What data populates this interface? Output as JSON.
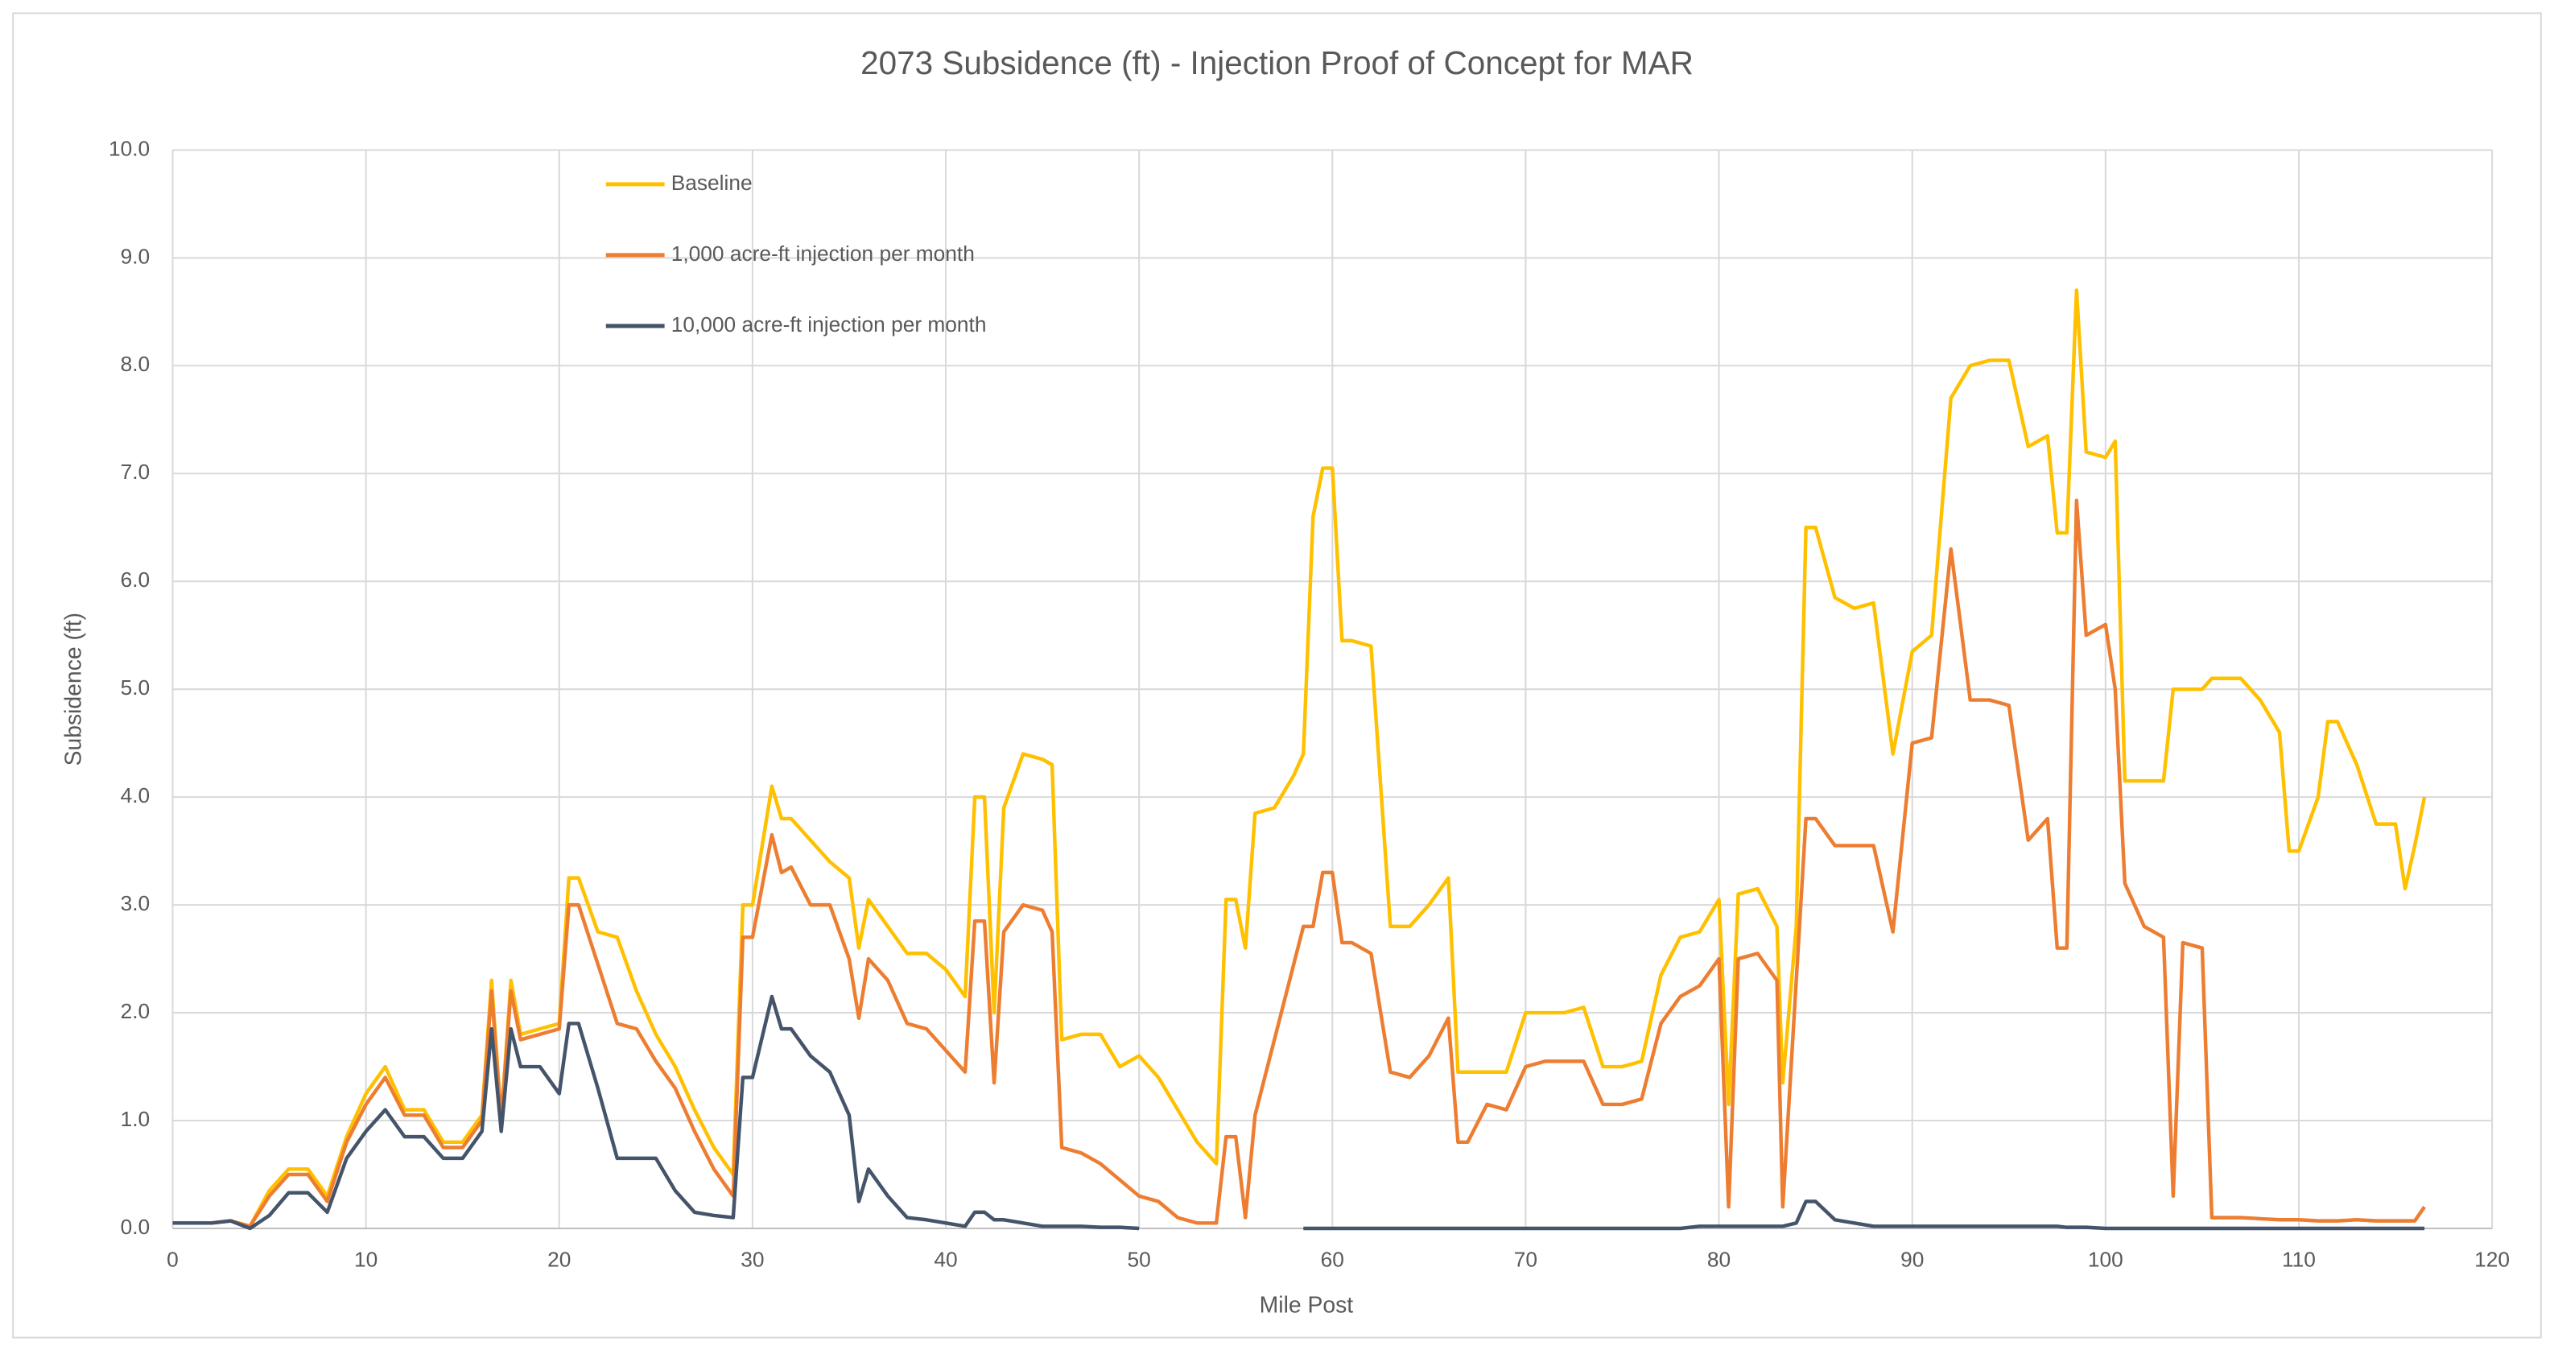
{
  "chart_data": {
    "type": "line",
    "title": "2073 Subsidence (ft) - Injection Proof of Concept for MAR",
    "x_label": "Mile Post",
    "y_label": "Subsidence (ft)",
    "grid": true,
    "legend": "top-left",
    "xlim": [
      0,
      120
    ],
    "xticks": [
      0,
      10,
      20,
      30,
      40,
      50,
      60,
      70,
      80,
      90,
      100,
      110,
      120
    ],
    "ylim": [
      0,
      10
    ],
    "yticks": [
      {
        "value": 0,
        "label": "0.0"
      },
      {
        "value": 1,
        "label": "1.0"
      },
      {
        "value": 2,
        "label": "2.0"
      },
      {
        "value": 3,
        "label": "3.0"
      },
      {
        "value": 4,
        "label": "4.0"
      },
      {
        "value": 5,
        "label": "5.0"
      },
      {
        "value": 6,
        "label": "6.0"
      },
      {
        "value": 7,
        "label": "7.0"
      },
      {
        "value": 8,
        "label": "8.0"
      },
      {
        "value": 9,
        "label": "9.0"
      },
      {
        "value": 10,
        "label": "10.0"
      }
    ],
    "x": [
      0,
      1,
      2,
      3,
      4,
      5,
      6,
      7,
      8,
      9,
      10,
      11,
      12,
      13,
      14,
      15,
      16,
      16.5,
      17,
      17.5,
      18,
      19,
      20,
      20.5,
      21,
      22,
      23,
      24,
      25,
      26,
      27,
      28,
      29,
      29.5,
      30,
      31,
      31.5,
      32,
      33,
      34,
      35,
      35.5,
      36,
      37,
      38,
      39,
      40,
      41,
      41.5,
      42,
      42.5,
      43,
      44,
      45,
      45.5,
      46,
      47,
      48,
      49,
      50,
      51,
      52,
      53,
      54,
      54.5,
      55,
      55.5,
      56,
      57,
      58,
      58.5,
      59,
      59.5,
      60,
      60.5,
      61,
      62,
      63,
      64,
      65,
      66,
      66.5,
      67,
      68,
      69,
      70,
      71,
      72,
      73,
      74,
      75,
      76,
      77,
      78,
      79,
      80,
      80.5,
      81,
      82,
      83,
      83.3,
      84,
      84.5,
      85,
      86,
      87,
      88,
      89,
      90,
      91,
      92,
      93,
      94,
      95,
      96,
      97,
      97.5,
      98,
      98.5,
      99,
      100,
      100.5,
      101,
      102,
      103,
      103.5,
      104,
      105,
      105.5,
      107,
      108,
      109,
      109.5,
      110,
      111,
      111.5,
      112,
      113,
      114,
      115,
      115.5,
      116,
      116.5
    ],
    "series": [
      {
        "name": "Baseline",
        "color": "#ffc000",
        "values": [
          0.05,
          0.05,
          0.05,
          0.07,
          0.02,
          0.35,
          0.55,
          0.55,
          0.3,
          0.85,
          1.25,
          1.5,
          1.1,
          1.1,
          0.8,
          0.8,
          1.05,
          2.3,
          1.0,
          2.3,
          1.8,
          1.85,
          1.9,
          3.25,
          3.25,
          2.75,
          2.7,
          2.2,
          1.8,
          1.5,
          1.1,
          0.75,
          0.5,
          3.0,
          3.0,
          4.1,
          3.8,
          3.8,
          3.6,
          3.4,
          3.25,
          2.6,
          3.05,
          2.8,
          2.55,
          2.55,
          2.4,
          2.15,
          4.0,
          4.0,
          2.0,
          3.9,
          4.4,
          4.35,
          4.3,
          1.75,
          1.8,
          1.8,
          1.5,
          1.6,
          1.4,
          1.1,
          0.8,
          0.6,
          3.05,
          3.05,
          2.6,
          3.85,
          3.9,
          4.2,
          4.4,
          6.6,
          7.05,
          7.05,
          5.45,
          5.45,
          5.4,
          2.8,
          2.8,
          3.0,
          3.25,
          1.45,
          1.45,
          1.45,
          1.45,
          2.0,
          2.0,
          2.0,
          2.05,
          1.5,
          1.5,
          1.55,
          2.35,
          2.7,
          2.75,
          3.05,
          1.15,
          3.1,
          3.15,
          2.8,
          1.35,
          2.8,
          6.5,
          6.5,
          5.85,
          5.75,
          5.8,
          4.4,
          5.35,
          5.5,
          7.7,
          8.0,
          8.05,
          8.05,
          7.25,
          7.35,
          6.45,
          6.45,
          8.7,
          7.2,
          7.15,
          7.3,
          4.15,
          4.15,
          4.15,
          5.0,
          5.0,
          5.0,
          5.1,
          5.1,
          4.9,
          4.6,
          3.5,
          3.5,
          4.0,
          4.7,
          4.7,
          4.3,
          3.75,
          3.75,
          3.15,
          3.55,
          4.0
        ]
      },
      {
        "name": "1,000 acre-ft injection per month",
        "color": "#ed7d31",
        "values": [
          0.05,
          0.05,
          0.05,
          0.07,
          0.02,
          0.3,
          0.5,
          0.5,
          0.25,
          0.8,
          1.15,
          1.4,
          1.05,
          1.05,
          0.75,
          0.75,
          1.0,
          2.2,
          1.0,
          2.2,
          1.75,
          1.8,
          1.85,
          3.0,
          3.0,
          2.45,
          1.9,
          1.85,
          1.55,
          1.3,
          0.9,
          0.55,
          0.3,
          2.7,
          2.7,
          3.65,
          3.3,
          3.35,
          3.0,
          3.0,
          2.5,
          1.95,
          2.5,
          2.3,
          1.9,
          1.85,
          1.65,
          1.45,
          2.85,
          2.85,
          1.35,
          2.75,
          3.0,
          2.95,
          2.75,
          0.75,
          0.7,
          0.6,
          0.45,
          0.3,
          0.25,
          0.1,
          0.05,
          0.05,
          0.85,
          0.85,
          0.1,
          1.05,
          1.75,
          2.45,
          2.8,
          2.8,
          3.3,
          3.3,
          2.65,
          2.65,
          2.55,
          1.45,
          1.4,
          1.6,
          1.95,
          0.8,
          0.8,
          1.15,
          1.1,
          1.5,
          1.55,
          1.55,
          1.55,
          1.15,
          1.15,
          1.2,
          1.9,
          2.15,
          2.25,
          2.5,
          0.2,
          2.5,
          2.55,
          2.3,
          0.2,
          2.3,
          3.8,
          3.8,
          3.55,
          3.55,
          3.55,
          2.75,
          4.5,
          4.55,
          6.3,
          4.9,
          4.9,
          4.85,
          3.6,
          3.8,
          2.6,
          2.6,
          6.75,
          5.5,
          5.6,
          5.0,
          3.2,
          2.8,
          2.7,
          0.3,
          2.65,
          2.6,
          0.1,
          0.1,
          0.09,
          0.08,
          0.08,
          0.08,
          0.07,
          0.07,
          0.07,
          0.08,
          0.07,
          0.07,
          0.07,
          0.07,
          0.2
        ]
      },
      {
        "name": "10,000 acre-ft injection per month",
        "color": "#44546a",
        "values": [
          0.05,
          0.05,
          0.05,
          0.07,
          0,
          0.12,
          0.33,
          0.33,
          0.15,
          0.65,
          0.9,
          1.1,
          0.85,
          0.85,
          0.65,
          0.65,
          0.9,
          1.85,
          0.9,
          1.85,
          1.5,
          1.5,
          1.25,
          1.9,
          1.9,
          1.3,
          0.65,
          0.65,
          0.65,
          0.35,
          0.15,
          0.12,
          0.1,
          1.4,
          1.4,
          2.15,
          1.85,
          1.85,
          1.6,
          1.45,
          1.05,
          0.25,
          0.55,
          0.3,
          0.1,
          0.08,
          0.05,
          0.02,
          0.15,
          0.15,
          0.08,
          0.08,
          0.05,
          0.02,
          0.02,
          0.02,
          0.02,
          0.01,
          0.01,
          0,
          null,
          null,
          null,
          null,
          null,
          null,
          null,
          null,
          null,
          null,
          0,
          0,
          0,
          0,
          0,
          0,
          0,
          0,
          0,
          0,
          0,
          0,
          0,
          0,
          0,
          0,
          0,
          0,
          0,
          0,
          0,
          0,
          0,
          0,
          0.02,
          0.02,
          0.02,
          0.02,
          0.02,
          0.02,
          0.02,
          0.05,
          0.25,
          0.25,
          0.08,
          0.05,
          0.02,
          0.02,
          0.02,
          0.02,
          0.02,
          0.02,
          0.02,
          0.02,
          0.02,
          0.02,
          0.02,
          0.01,
          0.01,
          0.01,
          0,
          0,
          0,
          0,
          0,
          0,
          0,
          0,
          0,
          0,
          0,
          0,
          0,
          0,
          0,
          0,
          0,
          0,
          0,
          0,
          0,
          0,
          0
        ]
      }
    ]
  }
}
